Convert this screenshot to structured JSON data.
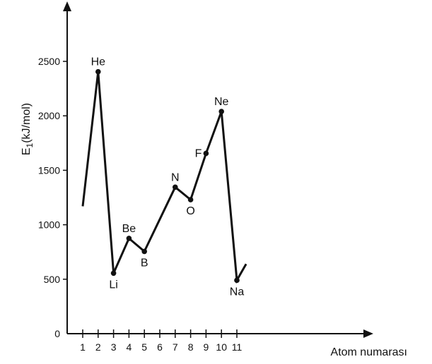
{
  "chart_data": {
    "type": "line",
    "title": "",
    "ylabel": "E",
    "ylabel_sub": "1",
    "ylabel_unit": "(kJ/mol)",
    "xlabel": "Atom numarası",
    "ylim": [
      0,
      2900
    ],
    "xlim": [
      0.5,
      12.5
    ],
    "x_ticks": [
      "1",
      "2",
      "3",
      "4",
      "5",
      "6",
      "7",
      "8",
      "9",
      "10",
      "11"
    ],
    "y_ticks": [
      "0",
      "500",
      "1000",
      "1500",
      "2000",
      "2500"
    ],
    "series": [
      {
        "x": [
          1,
          2,
          3,
          4,
          5,
          7,
          8,
          9,
          10,
          11,
          11.6
        ],
        "y": [
          1170,
          2405,
          555,
          875,
          755,
          1345,
          1230,
          1655,
          2040,
          490,
          640
        ]
      }
    ],
    "points": [
      {
        "x": 2,
        "y": 2405,
        "label": "He",
        "pos": "above"
      },
      {
        "x": 3,
        "y": 555,
        "label": "Li",
        "pos": "below"
      },
      {
        "x": 4,
        "y": 875,
        "label": "Be",
        "pos": "above"
      },
      {
        "x": 5,
        "y": 755,
        "label": "B",
        "pos": "below"
      },
      {
        "x": 7,
        "y": 1345,
        "label": "N",
        "pos": "above"
      },
      {
        "x": 8,
        "y": 1230,
        "label": "O",
        "pos": "below"
      },
      {
        "x": 9,
        "y": 1655,
        "label": "F",
        "pos": "left"
      },
      {
        "x": 10,
        "y": 2040,
        "label": "Ne",
        "pos": "above"
      },
      {
        "x": 11,
        "y": 490,
        "label": "Na",
        "pos": "below"
      }
    ],
    "line_color": "#111111"
  }
}
